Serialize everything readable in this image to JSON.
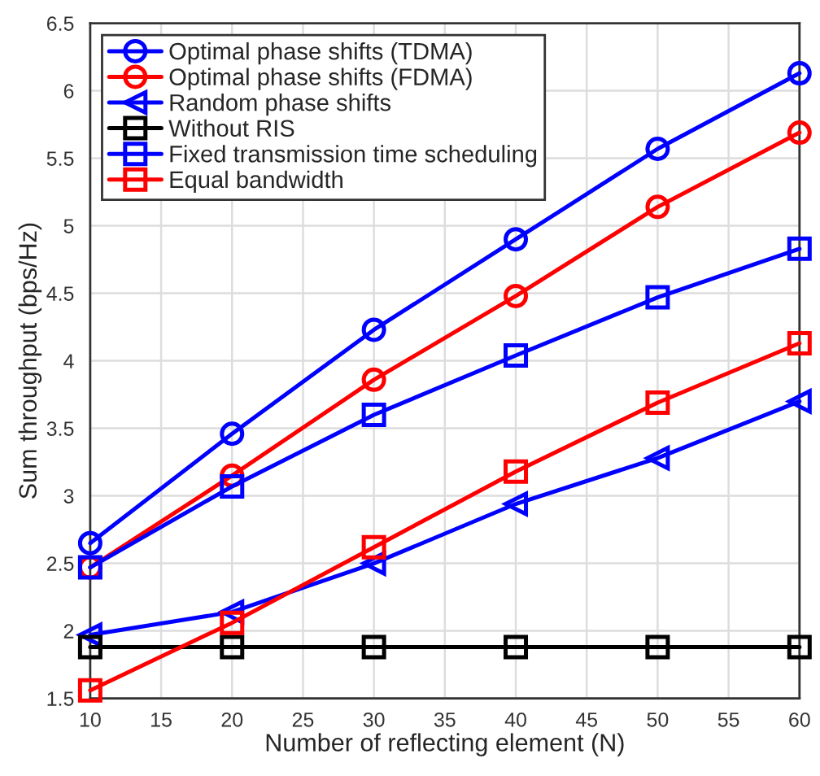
{
  "chart_data": {
    "type": "line",
    "xlabel": "Number of reflecting element (N)",
    "ylabel": "Sum throughput (bps/Hz)",
    "x": [
      10,
      20,
      30,
      40,
      50,
      60
    ],
    "series": [
      {
        "name": "Optimal phase shifts (TDMA)",
        "color": "#0000ff",
        "marker": "circle",
        "values": [
          2.65,
          3.46,
          4.23,
          4.9,
          5.57,
          6.13
        ]
      },
      {
        "name": "Optimal phase shifts (FDMA)",
        "color": "#ff0000",
        "marker": "circle",
        "values": [
          2.47,
          3.15,
          3.86,
          4.48,
          5.14,
          5.69
        ]
      },
      {
        "name": "Random phase shifts",
        "color": "#0000ff",
        "marker": "triangle",
        "values": [
          1.97,
          2.14,
          2.5,
          2.94,
          3.28,
          3.7
        ]
      },
      {
        "name": "Without RIS",
        "color": "#000000",
        "marker": "square",
        "values": [
          1.88,
          1.88,
          1.88,
          1.88,
          1.88,
          1.88
        ]
      },
      {
        "name": "Fixed transmission time scheduling",
        "color": "#0000ff",
        "marker": "square",
        "values": [
          2.47,
          3.07,
          3.6,
          4.04,
          4.47,
          4.83
        ]
      },
      {
        "name": "Equal bandwidth",
        "color": "#ff0000",
        "marker": "square",
        "values": [
          1.56,
          2.06,
          2.62,
          3.18,
          3.69,
          4.13
        ]
      }
    ],
    "xlim": [
      10,
      60
    ],
    "xticks": [
      10,
      15,
      20,
      25,
      30,
      35,
      40,
      45,
      50,
      55,
      60
    ],
    "ylim": [
      1.5,
      6.5
    ],
    "yticks": [
      1.5,
      2,
      2.5,
      3,
      3.5,
      4,
      4.5,
      5,
      5.5,
      6,
      6.5
    ],
    "grid": true,
    "legend": "top left",
    "line_style": "solid"
  }
}
